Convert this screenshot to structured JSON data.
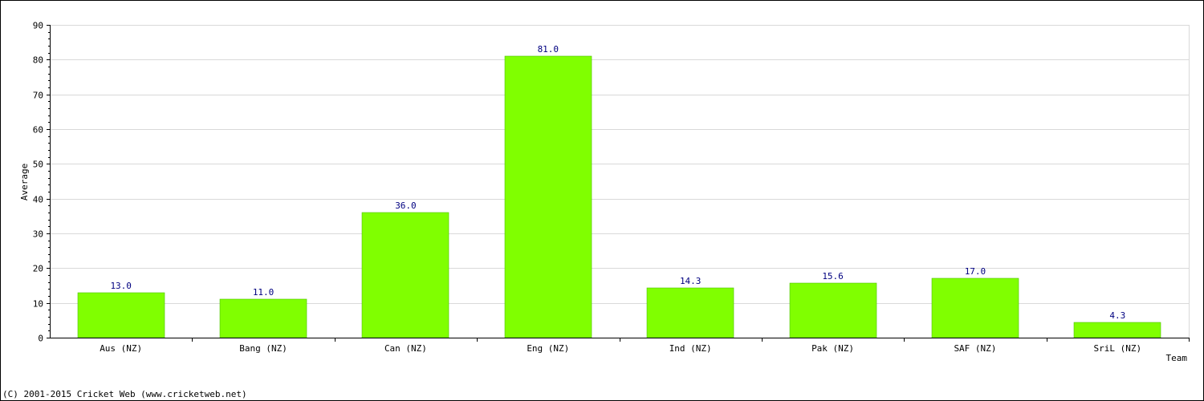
{
  "chart_data": {
    "type": "bar",
    "categories": [
      "Aus (NZ)",
      "Bang (NZ)",
      "Can (NZ)",
      "Eng (NZ)",
      "Ind (NZ)",
      "Pak (NZ)",
      "SAF (NZ)",
      "SriL (NZ)"
    ],
    "values": [
      13.0,
      11.0,
      36.0,
      81.0,
      14.3,
      15.6,
      17.0,
      4.3
    ],
    "value_labels": [
      "13.0",
      "11.0",
      "36.0",
      "81.0",
      "14.3",
      "15.6",
      "17.0",
      "4.3"
    ],
    "xlabel": "Team",
    "ylabel": "Average",
    "ylim": [
      0,
      90
    ],
    "yticks": [
      0,
      10,
      20,
      30,
      40,
      50,
      60,
      70,
      80,
      90
    ],
    "grid": true,
    "bar_color": "#80ff00",
    "value_label_color": "#000080"
  },
  "footer": {
    "copyright": "(C) 2001-2015 Cricket Web (www.cricketweb.net)"
  }
}
